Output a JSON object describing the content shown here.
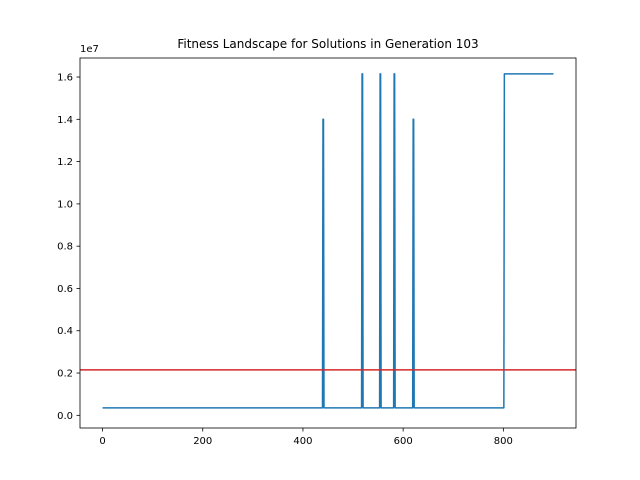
{
  "chart_data": {
    "type": "line",
    "title": "Fitness Landscape for Solutions in Generation 103",
    "xlabel": "",
    "ylabel": "",
    "y_offset_label": "1e7",
    "xlim": [
      -45,
      945
    ],
    "ylim": [
      -0.06,
      1.69
    ],
    "y_scale_factor": 10000000,
    "x_ticks": [
      0,
      200,
      400,
      600,
      800
    ],
    "y_ticks": [
      0.0,
      0.2,
      0.4,
      0.6,
      0.8,
      1.0,
      1.2,
      1.4,
      1.6
    ],
    "x_tick_labels": [
      "0",
      "200",
      "400",
      "600",
      "800"
    ],
    "y_tick_labels": [
      "0.0",
      "0.2",
      "0.4",
      "0.6",
      "0.8",
      "1.0",
      "1.2",
      "1.4",
      "1.6"
    ],
    "grid": false,
    "series": [
      {
        "color": "#1f77b4",
        "x": [
          0,
          439,
          440,
          441,
          442,
          517,
          518,
          519,
          520,
          553,
          554,
          555,
          556,
          581,
          582,
          583,
          584,
          619,
          620,
          621,
          622,
          801,
          802,
          900
        ],
        "y": [
          0.035,
          0.035,
          1.4,
          1.4,
          0.035,
          0.035,
          1.615,
          1.615,
          0.035,
          0.035,
          1.615,
          1.615,
          0.035,
          0.035,
          1.615,
          1.615,
          0.035,
          0.035,
          1.4,
          1.4,
          0.035,
          0.035,
          1.615,
          1.615
        ]
      }
    ],
    "hlines": [
      {
        "y": 0.215,
        "color": "#d62728"
      }
    ]
  }
}
